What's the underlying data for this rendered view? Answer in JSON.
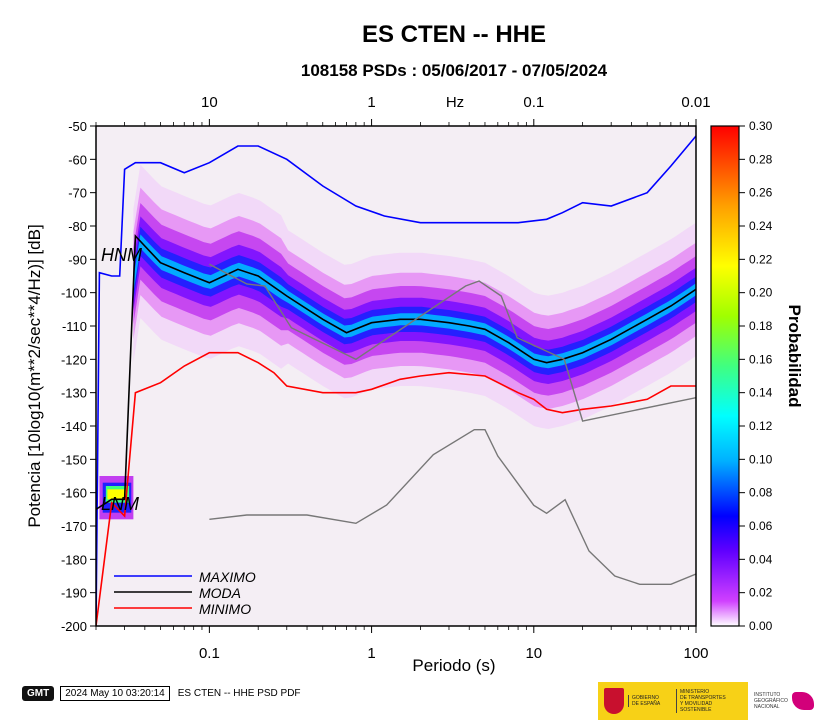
{
  "chart_data": {
    "type": "line",
    "title": "ES CTEN -- HHE",
    "subtitle": "108158 PSDs : 05/06/2017 - 07/05/2024",
    "xlabel": "Periodo (s)",
    "ylabel": "Potencia [10log10(m**2/sec**4/Hz)] [dB]",
    "x_scale": "log",
    "xlim": [
      0.02,
      100
    ],
    "ylim": [
      -200,
      -50
    ],
    "x_ticks": [
      "0.1",
      "1",
      "10",
      "100"
    ],
    "y_ticks": [
      "-50",
      "-60",
      "-70",
      "-80",
      "-90",
      "-100",
      "-110",
      "-120",
      "-130",
      "-140",
      "-150",
      "-160",
      "-170",
      "-180",
      "-190",
      "-200"
    ],
    "top_axis": {
      "label": "Hz",
      "ticks": [
        "10",
        "1",
        "0.1",
        "0.01"
      ]
    },
    "colorbar": {
      "label": "Probabilidad",
      "range": [
        0,
        0.3
      ],
      "ticks": [
        "0.00",
        "0.02",
        "0.04",
        "0.06",
        "0.08",
        "0.10",
        "0.12",
        "0.14",
        "0.16",
        "0.18",
        "0.20",
        "0.22",
        "0.24",
        "0.26",
        "0.28",
        "0.30"
      ]
    },
    "legend_position": "bottom-left",
    "series": [
      {
        "name": "MAXIMO",
        "color": "#0000ff",
        "x": [
          0.02,
          0.021,
          0.025,
          0.028,
          0.03,
          0.035,
          0.05,
          0.07,
          0.1,
          0.15,
          0.2,
          0.3,
          0.5,
          0.8,
          1.2,
          2,
          3,
          5,
          8,
          12,
          15,
          20,
          30,
          50,
          70,
          100
        ],
        "y": [
          -200,
          -94,
          -95,
          -95,
          -63,
          -61,
          -61,
          -64,
          -61,
          -56,
          -56,
          -60,
          -68,
          -74,
          -77,
          -79,
          -79,
          -79,
          -79,
          -78,
          -76,
          -73,
          -74,
          -70,
          -62,
          -53
        ]
      },
      {
        "name": "MODA",
        "color": "#000000",
        "x": [
          0.02,
          0.025,
          0.03,
          0.035,
          0.05,
          0.07,
          0.1,
          0.15,
          0.2,
          0.3,
          0.5,
          0.7,
          1,
          1.5,
          2,
          3,
          4,
          5,
          7,
          10,
          12,
          15,
          20,
          30,
          50,
          70,
          100
        ],
        "y": [
          -165,
          -162,
          -162,
          -83,
          -91,
          -94,
          -97,
          -93,
          -95,
          -101,
          -108,
          -112,
          -109,
          -108,
          -108,
          -109,
          -110,
          -111,
          -115,
          -120,
          -121,
          -120,
          -118,
          -114,
          -108,
          -104,
          -99
        ]
      },
      {
        "name": "MINIMO",
        "color": "#ff0000",
        "x": [
          0.02,
          0.025,
          0.03,
          0.035,
          0.05,
          0.07,
          0.1,
          0.15,
          0.2,
          0.25,
          0.3,
          0.5,
          0.8,
          1,
          1.5,
          2,
          3,
          5,
          8,
          10,
          12,
          15,
          20,
          30,
          50,
          70,
          100
        ],
        "y": [
          -200,
          -163,
          -167,
          -130,
          -127,
          -122,
          -118,
          -118,
          -121,
          -124,
          -128,
          -130,
          -130,
          -129,
          -126,
          -125,
          -124,
          -125,
          -130,
          -132,
          -135,
          -136,
          -135,
          -134,
          -132,
          -128,
          -128
        ]
      },
      {
        "name": "NHNM",
        "color": "#777777",
        "x": [
          0.1,
          0.17,
          0.22,
          0.32,
          0.8,
          3.8,
          4.6,
          6.3,
          7.9,
          15.4,
          20,
          100
        ],
        "y": [
          -91.5,
          -97.4,
          -98,
          -110.5,
          -120,
          -98,
          -96.5,
          -101,
          -113.5,
          -120,
          -138.5,
          -131.5
        ]
      },
      {
        "name": "NLNM",
        "color": "#777777",
        "x": [
          0.1,
          0.17,
          0.4,
          0.8,
          1.24,
          2.4,
          4.3,
          5,
          6,
          10,
          12,
          15.6,
          21.9,
          31.6,
          45,
          70,
          100
        ],
        "y": [
          -168,
          -166.7,
          -166.7,
          -169.2,
          -163.7,
          -148.6,
          -141.1,
          -141.1,
          -149,
          -163.8,
          -166.2,
          -162.1,
          -177.5,
          -185,
          -187.5,
          -187.5,
          -184.4
        ]
      }
    ],
    "labels": [
      {
        "text": "HNM"
      },
      {
        "text": "LNM"
      }
    ]
  },
  "footer": {
    "badge": "GMT",
    "timestamp": "2024 May 10 03:20:14",
    "caption": "ES CTEN -- HHE PSD PDF"
  },
  "logos": {
    "gob_col1": [
      "GOBIERNO",
      "DE ESPAÑA"
    ],
    "gob_col2": [
      "MINISTERIO",
      "DE TRANSPORTES",
      "Y MOVILIDAD SOSTENIBLE"
    ],
    "ign": [
      "INSTITUTO",
      "GEOGRÁFICO",
      "NACIONAL"
    ]
  }
}
